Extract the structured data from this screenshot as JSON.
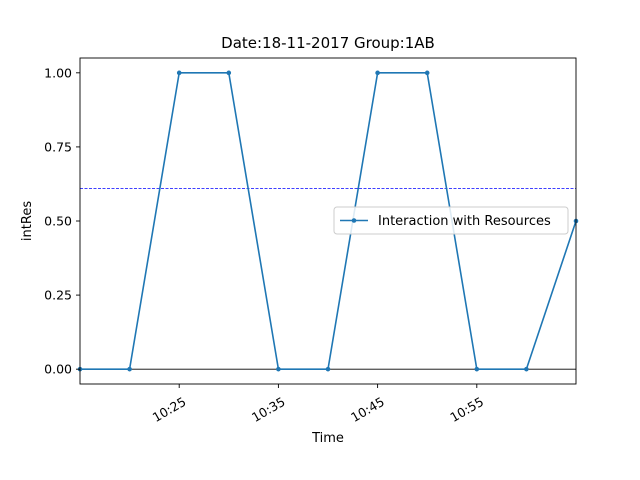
{
  "chart_data": {
    "type": "line",
    "title": "Date:18-11-2017  Group:1AB",
    "xlabel": "Time",
    "ylabel": "intRes",
    "x_tick_labels": [
      "10:25",
      "10:35",
      "10:45",
      "10:55"
    ],
    "x_ticks": [
      "10:25",
      "10:35",
      "10:45",
      "10:55"
    ],
    "xlim": [
      "10:15",
      "11:05"
    ],
    "y_ticks": [
      0.0,
      0.25,
      0.5,
      0.75,
      1.0
    ],
    "y_tick_labels": [
      "0.00",
      "0.25",
      "0.50",
      "0.75",
      "1.00"
    ],
    "ylim": [
      -0.05,
      1.05
    ],
    "grid": false,
    "legend_placement": "center-right",
    "series": [
      {
        "name": "Interaction with Resources",
        "color": "#1f77b4",
        "marker": "dot",
        "x": [
          "10:15",
          "10:20",
          "10:25",
          "10:30",
          "10:35",
          "10:40",
          "10:45",
          "10:50",
          "10:55",
          "11:00",
          "11:05"
        ],
        "y": [
          0,
          0,
          1,
          1,
          0,
          0,
          1,
          1,
          0,
          0,
          0.5
        ]
      }
    ],
    "reference_lines": [
      {
        "orientation": "horizontal",
        "y": 0.61,
        "color": "#0000ff",
        "style": "dashed"
      },
      {
        "orientation": "horizontal",
        "y": 0.0,
        "color": "#000000",
        "style": "solid"
      }
    ]
  }
}
